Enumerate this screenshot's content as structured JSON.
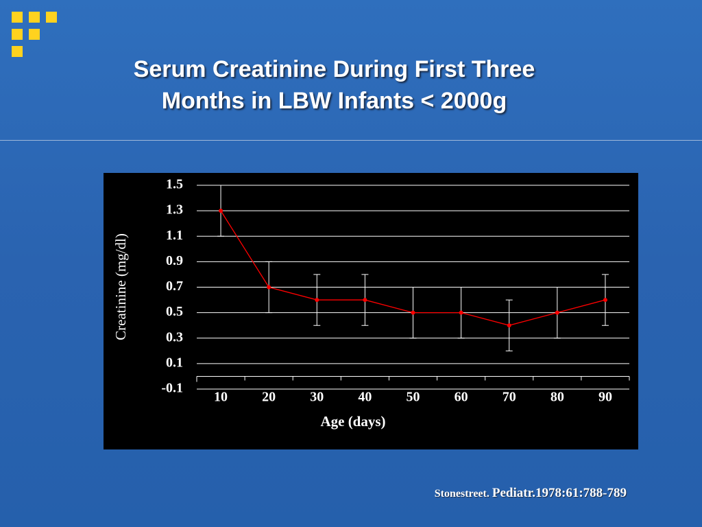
{
  "chart_data": {
    "type": "errorline",
    "title": "Serum Creatinine During First Three Months in LBW Infants < 2000g",
    "xlabel": "Age (days)",
    "ylabel": "Creatinine (mg/dl)",
    "categories": [
      "10",
      "20",
      "30",
      "40",
      "50",
      "60",
      "70",
      "80",
      "90"
    ],
    "series": [
      {
        "color": "#ff0000",
        "values": [
          1.3,
          0.7,
          0.6,
          0.6,
          0.5,
          0.5,
          0.4,
          0.5,
          0.6
        ],
        "errors": [
          0.2,
          0.2,
          0.2,
          0.2,
          0.2,
          0.2,
          0.2,
          0.2,
          0.2
        ],
        "error_color": "#ffffff"
      }
    ],
    "ylim": [
      -0.1,
      1.5
    ],
    "yticks": [
      -0.1,
      0.1,
      0.3,
      0.5,
      0.7,
      0.9,
      1.1,
      1.3,
      1.5
    ],
    "grid": true,
    "source": {
      "author": "Stonestreet.",
      "citation": "Pediatr.1978:61:788-789"
    }
  }
}
